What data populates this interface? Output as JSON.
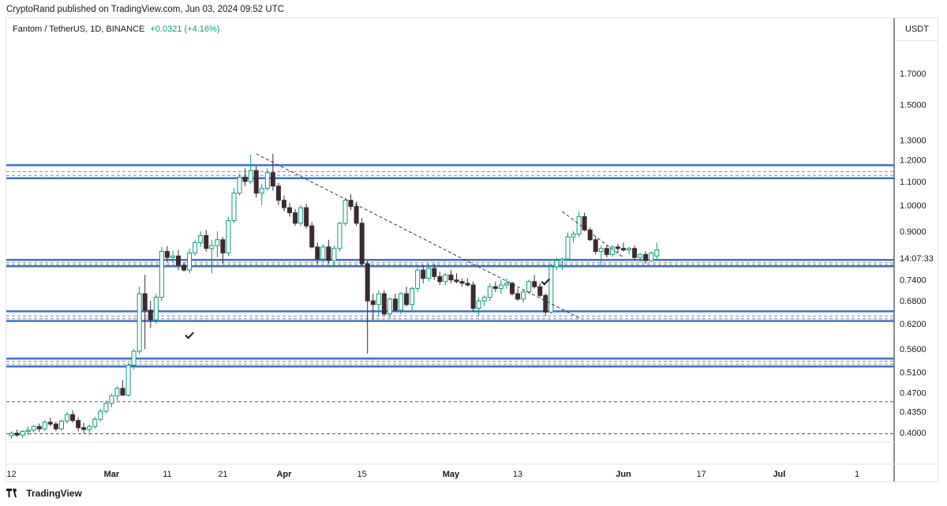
{
  "header": {
    "published_text": "CryptoRand published on TradingView.com, Jun 03, 2024 09:52 UTC"
  },
  "symbol": {
    "name": "Fantom / TetherUS, 1D, BINANCE",
    "change": "+0.0321 (+4.16%)"
  },
  "axis_unit": "USDT",
  "footer": {
    "brand": "TradingView"
  },
  "colors": {
    "up_fill": "#ffffff",
    "up_border": "#089981",
    "down_fill": "#3a2b2f",
    "zone_line": "#3b6fd8",
    "dashed": "#555555",
    "wick": "#787b86"
  },
  "chart_data": {
    "type": "candlestick",
    "scale": "log",
    "ylim": [
      0.385,
      1.95
    ],
    "y_ticks": [
      1.7,
      1.5,
      1.3,
      1.2,
      1.1,
      1.0,
      0.9,
      0.74,
      0.68,
      0.62,
      0.56,
      0.51,
      0.47,
      0.435,
      0.4
    ],
    "y_tick_labels": [
      "1.7000",
      "1.5000",
      "1.3000",
      "1.2000",
      "1.1000",
      "1.0000",
      "0.9000",
      "0.7400",
      "0.6800",
      "0.6200",
      "0.5600",
      "0.5100",
      "0.4700",
      "0.4350",
      "0.4000"
    ],
    "countdown_label": "14:07:33",
    "countdown_price": 0.785,
    "x_ticks": [
      {
        "label": "12",
        "bold": false,
        "index": 0
      },
      {
        "label": "Mar",
        "bold": true,
        "index": 18
      },
      {
        "label": "11",
        "bold": false,
        "index": 28
      },
      {
        "label": "21",
        "bold": false,
        "index": 38
      },
      {
        "label": "Apr",
        "bold": true,
        "index": 49
      },
      {
        "label": "15",
        "bold": false,
        "index": 63
      },
      {
        "label": "May",
        "bold": true,
        "index": 79
      },
      {
        "label": "13",
        "bold": false,
        "index": 91
      },
      {
        "label": "Jun",
        "bold": true,
        "index": 110
      },
      {
        "label": "17",
        "bold": false,
        "index": 124
      },
      {
        "label": "Jul",
        "bold": true,
        "index": 138
      },
      {
        "label": "1",
        "bold": false,
        "index": 152
      }
    ],
    "candles": [
      [
        0.395,
        0.402,
        0.39,
        0.399
      ],
      [
        0.399,
        0.405,
        0.393,
        0.396
      ],
      [
        0.396,
        0.404,
        0.391,
        0.402
      ],
      [
        0.402,
        0.41,
        0.396,
        0.404
      ],
      [
        0.404,
        0.412,
        0.4,
        0.41
      ],
      [
        0.41,
        0.415,
        0.401,
        0.406
      ],
      [
        0.406,
        0.42,
        0.403,
        0.417
      ],
      [
        0.417,
        0.425,
        0.41,
        0.414
      ],
      [
        0.414,
        0.418,
        0.402,
        0.406
      ],
      [
        0.406,
        0.422,
        0.403,
        0.419
      ],
      [
        0.419,
        0.435,
        0.415,
        0.43
      ],
      [
        0.43,
        0.438,
        0.416,
        0.42
      ],
      [
        0.42,
        0.425,
        0.402,
        0.408
      ],
      [
        0.408,
        0.416,
        0.398,
        0.405
      ],
      [
        0.405,
        0.413,
        0.396,
        0.41
      ],
      [
        0.41,
        0.426,
        0.406,
        0.422
      ],
      [
        0.422,
        0.44,
        0.418,
        0.436
      ],
      [
        0.436,
        0.455,
        0.432,
        0.45
      ],
      [
        0.45,
        0.468,
        0.443,
        0.464
      ],
      [
        0.464,
        0.482,
        0.455,
        0.478
      ],
      [
        0.478,
        0.494,
        0.47,
        0.465
      ],
      [
        0.465,
        0.53,
        0.462,
        0.525
      ],
      [
        0.525,
        0.56,
        0.515,
        0.555
      ],
      [
        0.555,
        0.72,
        0.548,
        0.7
      ],
      [
        0.7,
        0.755,
        0.56,
        0.655
      ],
      [
        0.655,
        0.68,
        0.61,
        0.63
      ],
      [
        0.63,
        0.7,
        0.62,
        0.69
      ],
      [
        0.69,
        0.845,
        0.68,
        0.83
      ],
      [
        0.83,
        0.848,
        0.795,
        0.81
      ],
      [
        0.81,
        0.832,
        0.795,
        0.815
      ],
      [
        0.815,
        0.835,
        0.77,
        0.785
      ],
      [
        0.785,
        0.795,
        0.765,
        0.77
      ],
      [
        0.77,
        0.84,
        0.76,
        0.825
      ],
      [
        0.825,
        0.868,
        0.815,
        0.86
      ],
      [
        0.86,
        0.9,
        0.845,
        0.885
      ],
      [
        0.885,
        0.905,
        0.83,
        0.84
      ],
      [
        0.84,
        0.87,
        0.76,
        0.85
      ],
      [
        0.85,
        0.9,
        0.81,
        0.87
      ],
      [
        0.87,
        0.88,
        0.79,
        0.825
      ],
      [
        0.825,
        0.955,
        0.815,
        0.94
      ],
      [
        0.94,
        1.07,
        0.93,
        1.05
      ],
      [
        1.05,
        1.135,
        1.04,
        1.12
      ],
      [
        1.12,
        1.16,
        1.08,
        1.1
      ],
      [
        1.1,
        1.225,
        1.09,
        1.15
      ],
      [
        1.15,
        1.17,
        1.03,
        1.05
      ],
      [
        1.05,
        1.09,
        1.0,
        1.07
      ],
      [
        1.07,
        1.16,
        1.06,
        1.14
      ],
      [
        1.14,
        1.23,
        1.06,
        1.08
      ],
      [
        1.08,
        1.095,
        1.0,
        1.02
      ],
      [
        1.02,
        1.04,
        0.975,
        0.99
      ],
      [
        0.99,
        1.01,
        0.955,
        0.97
      ],
      [
        0.97,
        0.985,
        0.92,
        0.93
      ],
      [
        0.93,
        1.0,
        0.92,
        0.99
      ],
      [
        0.99,
        1.005,
        0.91,
        0.92
      ],
      [
        0.92,
        0.935,
        0.84,
        0.845
      ],
      [
        0.845,
        0.86,
        0.79,
        0.805
      ],
      [
        0.805,
        0.855,
        0.795,
        0.845
      ],
      [
        0.845,
        0.87,
        0.79,
        0.8
      ],
      [
        0.8,
        0.85,
        0.785,
        0.84
      ],
      [
        0.84,
        0.935,
        0.83,
        0.93
      ],
      [
        0.93,
        1.03,
        0.92,
        1.02
      ],
      [
        1.02,
        1.045,
        0.98,
        0.995
      ],
      [
        0.995,
        1.015,
        0.92,
        0.93
      ],
      [
        0.93,
        0.95,
        0.78,
        0.79
      ],
      [
        0.79,
        0.8,
        0.55,
        0.68
      ],
      [
        0.68,
        0.7,
        0.63,
        0.67
      ],
      [
        0.67,
        0.71,
        0.64,
        0.7
      ],
      [
        0.7,
        0.71,
        0.64,
        0.645
      ],
      [
        0.645,
        0.69,
        0.635,
        0.685
      ],
      [
        0.685,
        0.7,
        0.65,
        0.655
      ],
      [
        0.655,
        0.705,
        0.645,
        0.7
      ],
      [
        0.7,
        0.72,
        0.665,
        0.67
      ],
      [
        0.67,
        0.72,
        0.65,
        0.715
      ],
      [
        0.715,
        0.78,
        0.705,
        0.77
      ],
      [
        0.77,
        0.785,
        0.73,
        0.745
      ],
      [
        0.745,
        0.79,
        0.735,
        0.775
      ],
      [
        0.775,
        0.79,
        0.74,
        0.75
      ],
      [
        0.75,
        0.765,
        0.725,
        0.735
      ],
      [
        0.735,
        0.76,
        0.725,
        0.755
      ],
      [
        0.755,
        0.77,
        0.73,
        0.74
      ],
      [
        0.74,
        0.76,
        0.73,
        0.735
      ],
      [
        0.735,
        0.745,
        0.72,
        0.73
      ],
      [
        0.73,
        0.745,
        0.72,
        0.725
      ],
      [
        0.725,
        0.735,
        0.65,
        0.66
      ],
      [
        0.66,
        0.69,
        0.64,
        0.68
      ],
      [
        0.68,
        0.695,
        0.665,
        0.69
      ],
      [
        0.69,
        0.73,
        0.68,
        0.72
      ],
      [
        0.72,
        0.735,
        0.705,
        0.715
      ],
      [
        0.715,
        0.74,
        0.7,
        0.725
      ],
      [
        0.725,
        0.745,
        0.715,
        0.73
      ],
      [
        0.73,
        0.735,
        0.695,
        0.7
      ],
      [
        0.7,
        0.715,
        0.68,
        0.685
      ],
      [
        0.685,
        0.71,
        0.675,
        0.705
      ],
      [
        0.705,
        0.74,
        0.7,
        0.735
      ],
      [
        0.735,
        0.755,
        0.715,
        0.72
      ],
      [
        0.72,
        0.73,
        0.69,
        0.695
      ],
      [
        0.695,
        0.7,
        0.64,
        0.65
      ],
      [
        0.65,
        0.79,
        0.645,
        0.78
      ],
      [
        0.78,
        0.81,
        0.77,
        0.8
      ],
      [
        0.8,
        0.81,
        0.77,
        0.805
      ],
      [
        0.805,
        0.895,
        0.8,
        0.88
      ],
      [
        0.88,
        0.9,
        0.86,
        0.89
      ],
      [
        0.89,
        0.975,
        0.88,
        0.955
      ],
      [
        0.955,
        0.97,
        0.9,
        0.905
      ],
      [
        0.905,
        0.915,
        0.865,
        0.87
      ],
      [
        0.87,
        0.88,
        0.82,
        0.83
      ],
      [
        0.83,
        0.85,
        0.78,
        0.84
      ],
      [
        0.84,
        0.85,
        0.81,
        0.82
      ],
      [
        0.82,
        0.85,
        0.812,
        0.845
      ],
      [
        0.845,
        0.855,
        0.825,
        0.84
      ],
      [
        0.84,
        0.86,
        0.83,
        0.835
      ],
      [
        0.835,
        0.845,
        0.82,
        0.84
      ],
      [
        0.84,
        0.85,
        0.8,
        0.81
      ],
      [
        0.81,
        0.825,
        0.795,
        0.82
      ],
      [
        0.82,
        0.83,
        0.79,
        0.8
      ],
      [
        0.8,
        0.83,
        0.795,
        0.825
      ],
      [
        0.815,
        0.86,
        0.8,
        0.835
      ]
    ],
    "zones": [
      {
        "top": 1.175,
        "bottom": 1.115,
        "dashed": [
          1.145,
          1.128
        ]
      },
      {
        "top": 0.802,
        "bottom": 0.782,
        "dashed": [
          0.793,
          0.787
        ]
      },
      {
        "top": 0.652,
        "bottom": 0.627,
        "dashed": [
          0.64,
          0.633
        ]
      },
      {
        "top": 0.539,
        "bottom": 0.522,
        "dashed": [
          0.533,
          0.527
        ]
      }
    ],
    "dashed_levels": [
      0.453,
      0.398
    ],
    "trendlines": [
      {
        "from": [
          44,
          1.23
        ],
        "to": [
          102,
          0.635
        ]
      },
      {
        "from": [
          99,
          0.975
        ],
        "to": [
          110,
          0.81
        ]
      }
    ],
    "check_marks": [
      {
        "index": 32,
        "price": 0.592
      },
      {
        "index": 96,
        "price": 0.735
      }
    ]
  }
}
